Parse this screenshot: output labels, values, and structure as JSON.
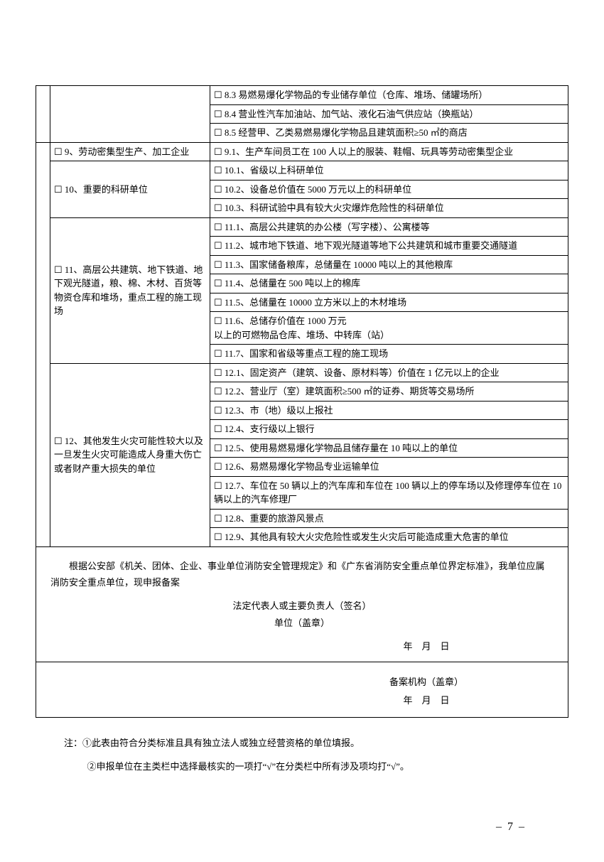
{
  "rows": {
    "r8_3": "8.3 易燃易爆化学物品的专业储存单位（仓库、堆场、储罐场所）",
    "r8_4": "8.4 营业性汽车加油站、加气站、液化石油气供应站（换瓶站）",
    "r8_5": "8.5 经营甲、乙类易燃易爆化学物品且建筑面积≥50 ㎡的商店",
    "cat9": "9、劳动密集型生产、加工企业",
    "r9_1": "9.1、生产车间员工在 100 人以上的服装、鞋帽、玩具等劳动密集型企业",
    "cat10": "10、重要的科研单位",
    "r10_1": "10.1、省级以上科研单位",
    "r10_2": "10.2、设备总价值在 5000 万元以上的科研单位",
    "r10_3": "10.3、科研试验中具有较大火灾爆炸危险性的科研单位",
    "cat11": "11、高层公共建筑、地下铁道、地下观光隧道，粮、棉、木材、百货等物资仓库和堆场，重点工程的施工现场",
    "r11_1": "11.1、高层公共建筑的办公楼（写字楼）、公寓楼等",
    "r11_2": "11.2、城市地下铁道、地下观光隧道等地下公共建筑和城市重要交通隧道",
    "r11_3": "11.3、国家储备粮库，总储量在 10000 吨以上的其他粮库",
    "r11_4": "11.4、总储量在 500 吨以上的棉库",
    "r11_5": "11.5、总储量在 10000 立方米以上的木材堆场",
    "r11_6": "11.6、总储存价值在 1000 万元\n以上的可燃物品仓库、堆场、中转库（站）",
    "r11_7": "11.7、国家和省级等重点工程的施工现场",
    "cat12": "12、其他发生火灾可能性较大以及一旦发生火灾可能造成人身重大伤亡或者财产重大损失的单位",
    "r12_1": "12.1、固定资产（建筑、设备、原材料等）价值在 1 亿元以上的企业",
    "r12_2": "12.2、营业厅（室）建筑面积≥500 ㎡的证券、期货等交易场所",
    "r12_3": "12.3、市（地）级以上报社",
    "r12_4": "12.4、支行级以上银行",
    "r12_5": "12.5、使用易燃易爆化学物品且储存量在 10 吨以上的单位",
    "r12_6": "12.6、易燃易爆化学物品专业运输单位",
    "r12_7": "12.7、车位在 50 辆以上的汽车库和车位在 100 辆以上的停车场以及修理停车位在 10 辆以上的汽车修理厂",
    "r12_8": "12.8、重要的旅游风景点",
    "r12_9": "12.9、其他具有较大火灾危险性或发生火灾后可能造成重大危害的单位"
  },
  "declaration": {
    "text": "根据公安部《机关、团体、企业、事业单位消防安全管理规定》和《广东省消防安全重点单位界定标准》，我单位应属消防安全重点单位，现申报备案",
    "sign1": "法定代表人或主要负责人（签名）",
    "sign2": "单位（盖章）",
    "date": "年　月　日"
  },
  "stamp": {
    "label": "备案机构（盖章）",
    "date": "年　月　日"
  },
  "notes": {
    "n1": "注：①此表由符合分类标准且具有独立法人或独立经营资格的单位填报。",
    "n2": "②申报单位在主类栏中选择最核实的一项打“√”在分类栏中所有涉及项均打“√”。"
  },
  "pagenum": "– 7 –"
}
